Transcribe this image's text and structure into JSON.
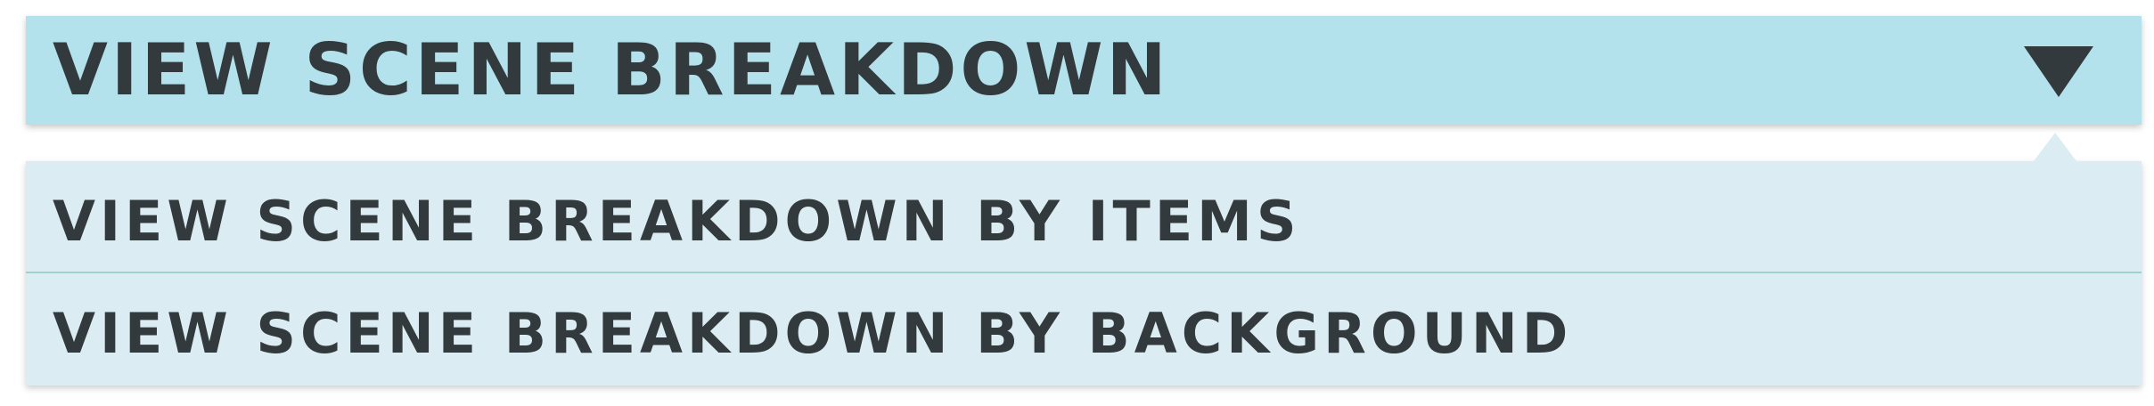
{
  "dropdown": {
    "label": "VIEW SCENE BREAKDOWN",
    "arrow_icon": "triangle-down-icon",
    "header_color": "#b3e1ec",
    "menu_color": "#dbedf2",
    "text_color": "#333a3d"
  },
  "menu": {
    "items": [
      {
        "label": "VIEW SCENE BREAKDOWN BY ITEMS"
      },
      {
        "label": "VIEW SCENE BREAKDOWN BY BACKGROUND"
      }
    ]
  }
}
